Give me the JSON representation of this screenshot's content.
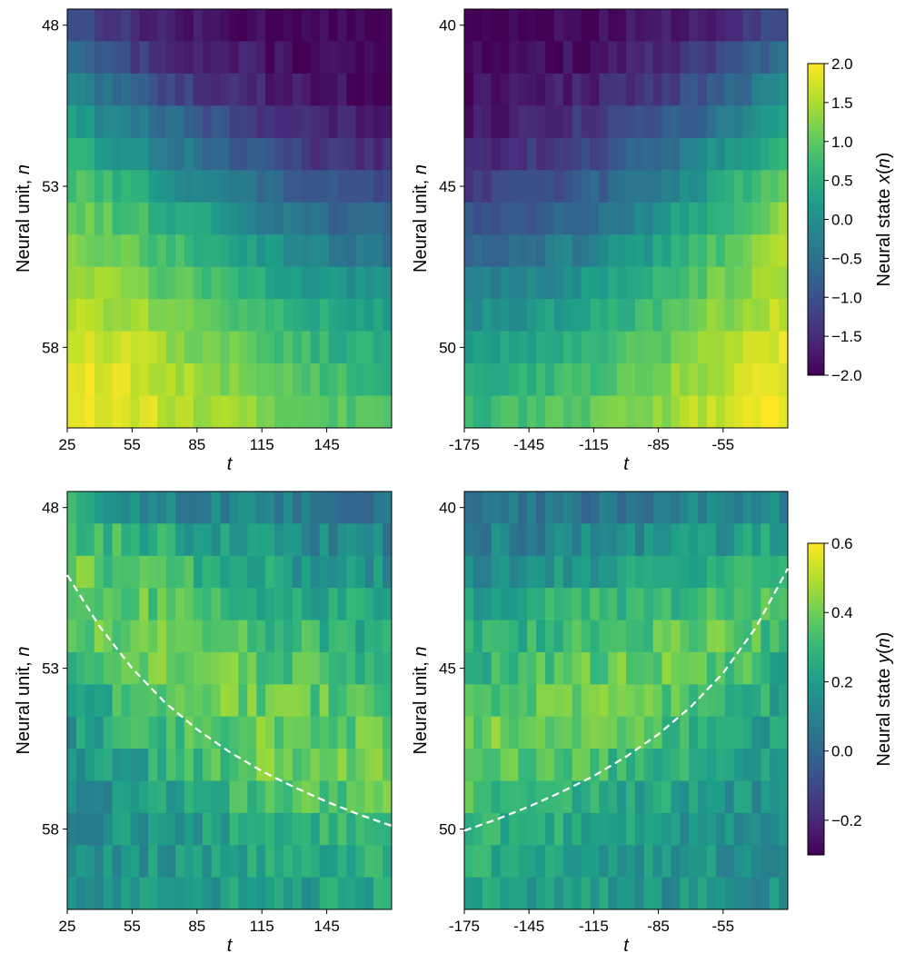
{
  "chart_data": [
    {
      "type": "heatmap",
      "panel": "top-left",
      "xlabel": "t",
      "ylabel": "Neural unit, n",
      "xticks": [
        "25",
        "55",
        "85",
        "115",
        "145"
      ],
      "yticks": [
        "48",
        "53",
        "58"
      ],
      "x_range": [
        25,
        175
      ],
      "rows": [
        48,
        49,
        50,
        51,
        52,
        53,
        54,
        55,
        56,
        57,
        58,
        59,
        60
      ],
      "cols_t": [
        25,
        55,
        85,
        115,
        145,
        175
      ],
      "values": [
        [
          -0.9,
          -1.5,
          -1.8,
          -1.9,
          -2.0,
          -2.0
        ],
        [
          -0.6,
          -1.2,
          -1.6,
          -1.8,
          -1.9,
          -2.0
        ],
        [
          -0.2,
          -0.8,
          -1.3,
          -1.6,
          -1.8,
          -1.9
        ],
        [
          0.2,
          -0.3,
          -0.9,
          -1.3,
          -1.6,
          -1.7
        ],
        [
          0.5,
          0.1,
          -0.5,
          -1.0,
          -1.4,
          -1.5
        ],
        [
          0.9,
          0.5,
          -0.1,
          -0.6,
          -1.0,
          -1.2
        ],
        [
          1.1,
          0.8,
          0.3,
          -0.2,
          -0.6,
          -0.8
        ],
        [
          1.3,
          1.0,
          0.6,
          0.2,
          -0.3,
          -0.5
        ],
        [
          1.5,
          1.2,
          0.8,
          0.5,
          0.1,
          -0.1
        ],
        [
          1.6,
          1.4,
          1.1,
          0.7,
          0.4,
          0.2
        ],
        [
          1.8,
          1.6,
          1.2,
          0.9,
          0.6,
          0.4
        ],
        [
          1.9,
          1.7,
          1.4,
          1.1,
          0.8,
          0.6
        ],
        [
          2.0,
          1.8,
          1.5,
          1.2,
          1.0,
          0.8
        ]
      ]
    },
    {
      "type": "heatmap",
      "panel": "top-right",
      "xlabel": "t",
      "ylabel": "Neural unit, n",
      "xticks": [
        "-175",
        "-145",
        "-115",
        "-85",
        "-55"
      ],
      "yticks": [
        "40",
        "45",
        "50"
      ],
      "x_range": [
        -175,
        -25
      ],
      "rows": [
        40,
        41,
        42,
        43,
        44,
        45,
        46,
        47,
        48,
        49,
        50,
        51,
        52
      ],
      "cols_t": [
        -175,
        -145,
        -115,
        -85,
        -55,
        -25
      ],
      "values": [
        [
          -2.0,
          -2.0,
          -1.9,
          -1.8,
          -1.5,
          -0.9
        ],
        [
          -2.0,
          -1.9,
          -1.8,
          -1.6,
          -1.2,
          -0.5
        ],
        [
          -1.9,
          -1.8,
          -1.6,
          -1.3,
          -0.8,
          0.0
        ],
        [
          -1.8,
          -1.6,
          -1.3,
          -1.0,
          -0.4,
          0.4
        ],
        [
          -1.6,
          -1.4,
          -1.1,
          -0.6,
          0.0,
          0.8
        ],
        [
          -1.3,
          -1.1,
          -0.8,
          -0.3,
          0.4,
          1.1
        ],
        [
          -1.0,
          -0.8,
          -0.5,
          0.0,
          0.7,
          1.3
        ],
        [
          -0.7,
          -0.5,
          -0.2,
          0.3,
          0.9,
          1.5
        ],
        [
          -0.4,
          -0.2,
          0.1,
          0.6,
          1.1,
          1.6
        ],
        [
          -0.1,
          0.1,
          0.4,
          0.8,
          1.3,
          1.7
        ],
        [
          0.2,
          0.4,
          0.6,
          1.0,
          1.5,
          1.8
        ],
        [
          0.4,
          0.6,
          0.8,
          1.2,
          1.6,
          1.9
        ],
        [
          0.6,
          0.8,
          1.0,
          1.3,
          1.7,
          2.0
        ]
      ]
    },
    {
      "type": "heatmap",
      "panel": "bottom-left",
      "xlabel": "t",
      "ylabel": "Neural unit, n",
      "xticks": [
        "25",
        "55",
        "85",
        "115",
        "145"
      ],
      "yticks": [
        "48",
        "53",
        "58"
      ],
      "x_range": [
        25,
        175
      ],
      "rows": [
        48,
        49,
        50,
        51,
        52,
        53,
        54,
        55,
        56,
        57,
        58,
        59,
        60
      ],
      "cols_t": [
        25,
        55,
        85,
        115,
        145,
        175
      ],
      "values": [
        [
          0.25,
          0.15,
          0.1,
          0.08,
          0.05,
          0.05
        ],
        [
          0.35,
          0.28,
          0.22,
          0.15,
          0.12,
          0.1
        ],
        [
          0.38,
          0.33,
          0.28,
          0.22,
          0.18,
          0.15
        ],
        [
          0.35,
          0.38,
          0.32,
          0.28,
          0.24,
          0.2
        ],
        [
          0.32,
          0.42,
          0.36,
          0.32,
          0.28,
          0.25
        ],
        [
          0.28,
          0.38,
          0.4,
          0.36,
          0.32,
          0.3
        ],
        [
          0.22,
          0.32,
          0.4,
          0.38,
          0.36,
          0.33
        ],
        [
          0.18,
          0.28,
          0.34,
          0.4,
          0.38,
          0.35
        ],
        [
          0.15,
          0.22,
          0.3,
          0.38,
          0.4,
          0.38
        ],
        [
          0.12,
          0.18,
          0.25,
          0.32,
          0.36,
          0.35
        ],
        [
          0.12,
          0.16,
          0.2,
          0.26,
          0.3,
          0.32
        ],
        [
          0.14,
          0.16,
          0.18,
          0.22,
          0.25,
          0.28
        ],
        [
          0.15,
          0.16,
          0.18,
          0.2,
          0.22,
          0.25
        ]
      ],
      "overlay": {
        "style": "dashed",
        "color": "#ffffff",
        "points_t": [
          25,
          40,
          55,
          70,
          85,
          100,
          115,
          130,
          145,
          160,
          175
        ],
        "points_n": [
          50.1,
          51.7,
          53.0,
          54.05,
          54.9,
          55.6,
          56.2,
          56.7,
          57.15,
          57.55,
          57.9
        ]
      }
    },
    {
      "type": "heatmap",
      "panel": "bottom-right",
      "xlabel": "t",
      "ylabel": "Neural unit, n",
      "xticks": [
        "-175",
        "-145",
        "-115",
        "-85",
        "-55"
      ],
      "yticks": [
        "40",
        "45",
        "50"
      ],
      "x_range": [
        -175,
        -25
      ],
      "rows": [
        40,
        41,
        42,
        43,
        44,
        45,
        46,
        47,
        48,
        49,
        50,
        51,
        52
      ],
      "cols_t": [
        -175,
        -145,
        -115,
        -85,
        -55,
        -25
      ],
      "values": [
        [
          0.05,
          0.05,
          0.06,
          0.08,
          0.1,
          0.12
        ],
        [
          0.1,
          0.1,
          0.12,
          0.15,
          0.18,
          0.22
        ],
        [
          0.15,
          0.18,
          0.2,
          0.24,
          0.28,
          0.3
        ],
        [
          0.22,
          0.24,
          0.28,
          0.3,
          0.34,
          0.32
        ],
        [
          0.25,
          0.28,
          0.32,
          0.36,
          0.38,
          0.3
        ],
        [
          0.28,
          0.32,
          0.36,
          0.4,
          0.36,
          0.25
        ],
        [
          0.32,
          0.36,
          0.4,
          0.38,
          0.3,
          0.22
        ],
        [
          0.38,
          0.4,
          0.38,
          0.32,
          0.26,
          0.18
        ],
        [
          0.36,
          0.35,
          0.32,
          0.28,
          0.22,
          0.16
        ],
        [
          0.32,
          0.3,
          0.26,
          0.22,
          0.18,
          0.14
        ],
        [
          0.28,
          0.25,
          0.22,
          0.2,
          0.17,
          0.15
        ],
        [
          0.25,
          0.22,
          0.2,
          0.18,
          0.16,
          0.15
        ],
        [
          0.22,
          0.2,
          0.18,
          0.17,
          0.16,
          0.15
        ]
      ],
      "overlay": {
        "style": "dashed",
        "color": "#ffffff",
        "points_t": [
          -175,
          -160,
          -145,
          -130,
          -115,
          -100,
          -85,
          -70,
          -55,
          -40,
          -25
        ],
        "points_n": [
          50.05,
          49.7,
          49.3,
          48.85,
          48.35,
          47.75,
          47.05,
          46.2,
          45.15,
          43.75,
          41.9
        ]
      }
    }
  ],
  "colorbars": [
    {
      "label_prefix": "Neural state ",
      "label_var": "x",
      "label_suffix": "(",
      "label_arg": "n",
      "label_close": ")",
      "range": [
        -2.0,
        2.0
      ],
      "ticks": [
        "2.0",
        "1.5",
        "1.0",
        "0.5",
        "0.0",
        "−0.5",
        "−1.0",
        "−1.5",
        "−2.0"
      ],
      "tick_values": [
        2.0,
        1.5,
        1.0,
        0.5,
        0.0,
        -0.5,
        -1.0,
        -1.5,
        -2.0
      ]
    },
    {
      "label_prefix": "Neural state ",
      "label_var": "y",
      "label_suffix": "(",
      "label_arg": "n",
      "label_close": ")",
      "range": [
        -0.3,
        0.6
      ],
      "ticks": [
        "0.6",
        "0.4",
        "0.2",
        "0.0",
        "−0.2"
      ],
      "tick_values": [
        0.6,
        0.4,
        0.2,
        0.0,
        -0.2
      ]
    }
  ],
  "colormap": [
    "#440154",
    "#482878",
    "#3e4989",
    "#31688e",
    "#26828e",
    "#1f9e89",
    "#35b779",
    "#6ece58",
    "#b5de2b",
    "#fde725"
  ]
}
